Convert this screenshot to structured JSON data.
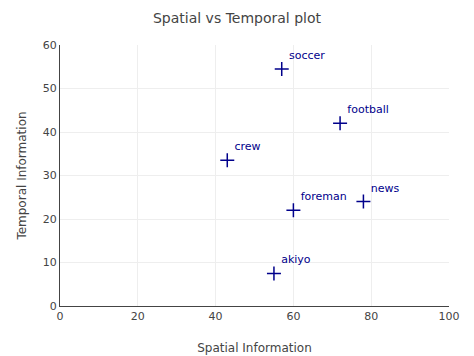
{
  "chart_data": {
    "type": "scatter",
    "title": "Spatial vs Temporal plot",
    "xlabel": "Spatial Information",
    "ylabel": "Temporal Information",
    "x": [
      57,
      72,
      43,
      60,
      78,
      55
    ],
    "values": [
      54.5,
      42,
      33.5,
      22,
      24,
      7.5
    ],
    "labels": [
      "soccer",
      "football",
      "crew",
      "foreman",
      "news",
      "akiyo"
    ],
    "xlim": [
      0,
      100
    ],
    "ylim": [
      0,
      60
    ],
    "xticks": [
      0,
      20,
      40,
      60,
      80,
      100
    ],
    "yticks": [
      0,
      10,
      20,
      30,
      40,
      50,
      60
    ],
    "color": "#00008B",
    "marker": "plus",
    "grid": true
  }
}
